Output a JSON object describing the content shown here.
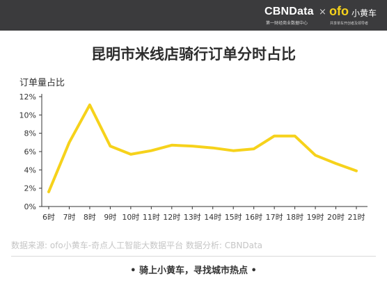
{
  "header": {
    "brand_cbn": "CBNData",
    "brand_cbn_sub": "第一财经商业数据中心",
    "separator": "×",
    "brand_ofo": "ofo",
    "brand_ofo_cn": "小黄车",
    "brand_ofo_sub": "共享单车开创者及领导者",
    "bg_color": "#3b3b3d"
  },
  "footer": {
    "source": "数据来源: ofo小黄车-奇点人工智能大数据平台    数据分析: CBNData",
    "slogan": "• 骑上小黄车，寻找城市热点 •"
  },
  "chart_data": {
    "type": "line",
    "title": "昆明市米线店骑行订单分时占比",
    "ylabel": "订单量占比",
    "xlabel": "",
    "categories": [
      "6时",
      "7时",
      "8时",
      "9时",
      "10时",
      "11时",
      "12时",
      "13时",
      "14时",
      "15时",
      "16时",
      "17时",
      "18时",
      "19时",
      "20时",
      "21时"
    ],
    "series": [
      {
        "values": [
          1.6,
          7.0,
          11.1,
          6.6,
          5.7,
          6.1,
          6.7,
          6.6,
          6.4,
          6.1,
          6.3,
          7.7,
          7.7,
          5.6,
          4.7,
          3.9
        ]
      }
    ],
    "ylim": [
      0,
      12
    ],
    "yticks": [
      0,
      2,
      4,
      6,
      8,
      10,
      12
    ],
    "ytick_labels": [
      "0%",
      "2%",
      "4%",
      "6%",
      "8%",
      "10%",
      "12%"
    ],
    "line_color": "#f6d21b",
    "grid": false
  }
}
